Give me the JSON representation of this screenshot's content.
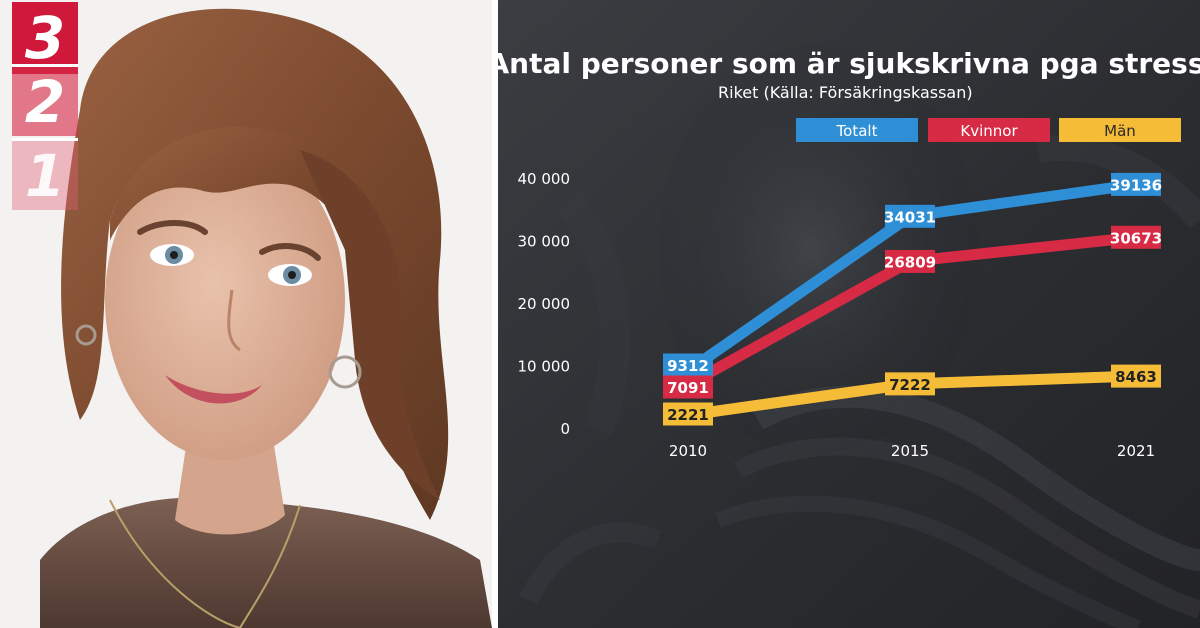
{
  "badges": {
    "top": "3",
    "middle": "2",
    "bottom": "1"
  },
  "chart_data": {
    "type": "line",
    "title": "Antal personer som är sjukskrivna pga stress",
    "subtitle": "Riket (Källa: Försäkringskassan)",
    "x": [
      "2010",
      "2015",
      "2021"
    ],
    "ylim": [
      0,
      40000
    ],
    "yticks": [
      0,
      10000,
      20000,
      30000,
      40000
    ],
    "ytick_labels": [
      "0",
      "10 000",
      "20 000",
      "30 000",
      "40 000"
    ],
    "legend_placement": "top-right",
    "grid": false,
    "series": [
      {
        "name": "Totalt",
        "color": "#2f8fd6",
        "values": [
          9312,
          34031,
          39136
        ],
        "labels": [
          "9312",
          "34031",
          "39136"
        ]
      },
      {
        "name": "Kvinnor",
        "color": "#d72a45",
        "values": [
          7091,
          26809,
          30673
        ],
        "labels": [
          "7091",
          "26809",
          "30673"
        ]
      },
      {
        "name": "Män",
        "color": "#f5bc38",
        "values": [
          2221,
          7222,
          8463
        ],
        "labels": [
          "2221",
          "7222",
          "8463"
        ]
      }
    ]
  }
}
